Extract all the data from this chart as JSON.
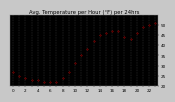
{
  "title": "Avg. Temperature per Hour (°F) per 24hrs",
  "background_color": "#000000",
  "plot_bg_color": "#000000",
  "fig_bg_color": "#c8c8c8",
  "dot_color": "#ff0000",
  "dot_size": 1.5,
  "grid_color": "#555555",
  "hours": [
    0,
    1,
    2,
    3,
    4,
    5,
    6,
    7,
    8,
    9,
    10,
    11,
    12,
    13,
    14,
    15,
    16,
    17,
    18,
    19,
    20,
    21,
    22,
    23
  ],
  "temps": [
    27,
    25,
    24,
    23,
    23,
    22,
    22,
    22,
    24,
    27,
    31,
    35,
    38,
    42,
    45,
    46,
    47,
    47,
    44,
    43,
    46,
    49,
    50,
    51
  ],
  "ylim_min": 20,
  "ylim_max": 55,
  "yticks": [
    20,
    25,
    30,
    35,
    40,
    45,
    50
  ],
  "title_fontsize": 3.8,
  "tick_fontsize": 3.0,
  "title_color": "#000000",
  "tick_color": "#000000",
  "axis_label_color": "#000000"
}
